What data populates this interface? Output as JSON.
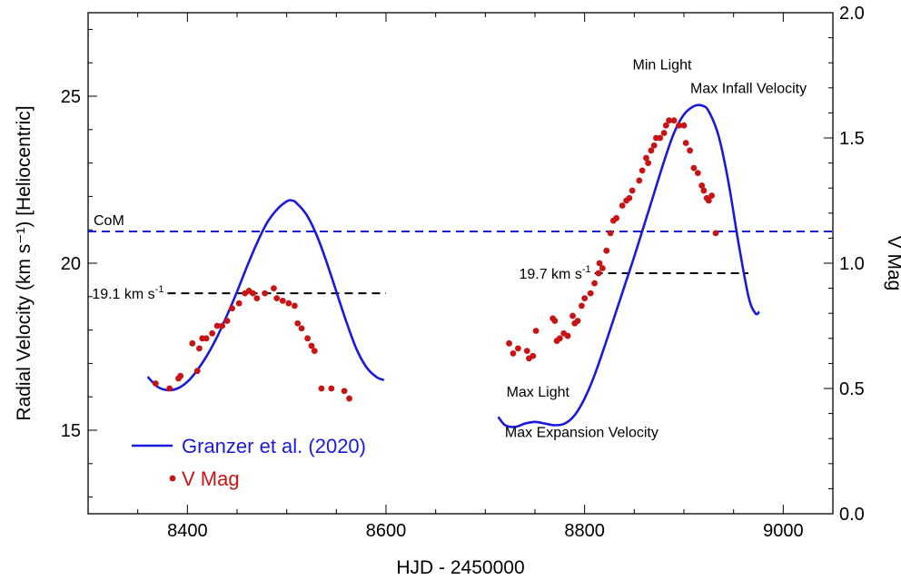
{
  "chart_data": {
    "type": "line",
    "x_axis": {
      "label": "HJD - 2450000",
      "range": [
        8300,
        9050
      ],
      "ticks": [
        8400,
        8600,
        8800,
        9000
      ],
      "tick_labels": [
        "8400",
        "8600",
        "8800",
        "9000"
      ]
    },
    "y_axis_left": {
      "label": "Radial Velocity (km s⁻¹) [Heliocentric]",
      "range": [
        12.5,
        27.5
      ],
      "ticks": [
        15,
        20,
        25
      ],
      "tick_labels": [
        "15",
        "20",
        "25"
      ]
    },
    "y_axis_right": {
      "label": "V Mag",
      "range": [
        0.0,
        2.0
      ],
      "ticks": [
        0.0,
        0.5,
        1.0,
        1.5,
        2.0
      ],
      "tick_labels": [
        "0.0",
        "0.5",
        "1.0",
        "1.5",
        "2.0"
      ]
    },
    "series": [
      {
        "name": "Granzer et al. (2020)",
        "axis": "left",
        "color": "#1a1adc",
        "style": "line",
        "segments": [
          [
            [
              8360,
              16.6
            ],
            [
              8370,
              16.3
            ],
            [
              8380,
              16.2
            ],
            [
              8390,
              16.25
            ],
            [
              8400,
              16.45
            ],
            [
              8410,
              16.8
            ],
            [
              8420,
              17.25
            ],
            [
              8430,
              17.8
            ],
            [
              8440,
              18.45
            ],
            [
              8450,
              19.15
            ],
            [
              8460,
              19.9
            ],
            [
              8470,
              20.6
            ],
            [
              8480,
              21.2
            ],
            [
              8490,
              21.6
            ],
            [
              8500,
              21.85
            ],
            [
              8505,
              21.88
            ],
            [
              8510,
              21.8
            ],
            [
              8520,
              21.45
            ],
            [
              8530,
              20.85
            ],
            [
              8540,
              20.05
            ],
            [
              8550,
              19.15
            ],
            [
              8560,
              18.25
            ],
            [
              8570,
              17.45
            ],
            [
              8580,
              16.9
            ],
            [
              8590,
              16.6
            ],
            [
              8598,
              16.5
            ]
          ],
          [
            [
              8713,
              15.4
            ],
            [
              8720,
              15.15
            ],
            [
              8730,
              15.1
            ],
            [
              8740,
              15.2
            ],
            [
              8750,
              15.25
            ],
            [
              8760,
              15.2
            ],
            [
              8770,
              15.15
            ],
            [
              8780,
              15.2
            ],
            [
              8790,
              15.45
            ],
            [
              8800,
              15.95
            ],
            [
              8810,
              16.65
            ],
            [
              8820,
              17.5
            ],
            [
              8830,
              18.4
            ],
            [
              8840,
              19.3
            ],
            [
              8850,
              20.2
            ],
            [
              8860,
              21.15
            ],
            [
              8870,
              22.1
            ],
            [
              8880,
              23.05
            ],
            [
              8890,
              23.9
            ],
            [
              8900,
              24.45
            ],
            [
              8910,
              24.7
            ],
            [
              8918,
              24.72
            ],
            [
              8925,
              24.55
            ],
            [
              8935,
              23.8
            ],
            [
              8945,
              22.4
            ],
            [
              8955,
              20.6
            ],
            [
              8965,
              19.0
            ],
            [
              8972,
              18.5
            ],
            [
              8976,
              18.55
            ]
          ]
        ]
      },
      {
        "name": "V Mag",
        "axis": "right",
        "color": "#c81414",
        "style": "markers",
        "points": [
          [
            8368,
            0.52
          ],
          [
            8382,
            0.5
          ],
          [
            8391,
            0.54
          ],
          [
            8393,
            0.55
          ],
          [
            8405,
            0.68
          ],
          [
            8410,
            0.57
          ],
          [
            8412,
            0.66
          ],
          [
            8415,
            0.7
          ],
          [
            8419,
            0.7
          ],
          [
            8425,
            0.72
          ],
          [
            8430,
            0.75
          ],
          [
            8435,
            0.75
          ],
          [
            8440,
            0.77
          ],
          [
            8445,
            0.82
          ],
          [
            8452,
            0.84
          ],
          [
            8458,
            0.88
          ],
          [
            8462,
            0.89
          ],
          [
            8466,
            0.88
          ],
          [
            8470,
            0.86
          ],
          [
            8478,
            0.88
          ],
          [
            8487,
            0.9
          ],
          [
            8490,
            0.86
          ],
          [
            8496,
            0.85
          ],
          [
            8502,
            0.84
          ],
          [
            8508,
            0.83
          ],
          [
            8511,
            0.76
          ],
          [
            8515,
            0.74
          ],
          [
            8521,
            0.7
          ],
          [
            8525,
            0.67
          ],
          [
            8528,
            0.65
          ],
          [
            8535,
            0.5
          ],
          [
            8545,
            0.5
          ],
          [
            8558,
            0.49
          ],
          [
            8563,
            0.46
          ],
          [
            8724,
            0.68
          ],
          [
            8728,
            0.64
          ],
          [
            8733,
            0.66
          ],
          [
            8742,
            0.65
          ],
          [
            8744,
            0.62
          ],
          [
            8748,
            0.63
          ],
          [
            8751,
            0.73
          ],
          [
            8768,
            0.78
          ],
          [
            8770,
            0.77
          ],
          [
            8772,
            0.69
          ],
          [
            8775,
            0.7
          ],
          [
            8779,
            0.72
          ],
          [
            8783,
            0.71
          ],
          [
            8788,
            0.79
          ],
          [
            8790,
            0.76
          ],
          [
            8793,
            0.77
          ],
          [
            8797,
            0.83
          ],
          [
            8800,
            0.86
          ],
          [
            8806,
            0.88
          ],
          [
            8810,
            0.92
          ],
          [
            8814,
            0.96
          ],
          [
            8815,
            1.0
          ],
          [
            8818,
            0.98
          ],
          [
            8822,
            1.05
          ],
          [
            8826,
            1.12
          ],
          [
            8829,
            1.17
          ],
          [
            8832,
            1.18
          ],
          [
            8838,
            1.23
          ],
          [
            8842,
            1.25
          ],
          [
            8845,
            1.26
          ],
          [
            8848,
            1.29
          ],
          [
            8855,
            1.33
          ],
          [
            8858,
            1.37
          ],
          [
            8862,
            1.42
          ],
          [
            8864,
            1.4
          ],
          [
            8867,
            1.45
          ],
          [
            8870,
            1.47
          ],
          [
            8872,
            1.5
          ],
          [
            8876,
            1.5
          ],
          [
            8880,
            1.52
          ],
          [
            8882,
            1.55
          ],
          [
            8885,
            1.57
          ],
          [
            8890,
            1.57
          ],
          [
            8895,
            1.55
          ],
          [
            8900,
            1.55
          ],
          [
            8902,
            1.48
          ],
          [
            8906,
            1.45
          ],
          [
            8910,
            1.38
          ],
          [
            8914,
            1.36
          ],
          [
            8918,
            1.31
          ],
          [
            8920,
            1.29
          ],
          [
            8923,
            1.26
          ],
          [
            8925,
            1.25
          ],
          [
            8928,
            1.27
          ],
          [
            8932,
            1.12
          ]
        ]
      }
    ],
    "reference_lines": [
      {
        "name": "CoM",
        "label": "CoM",
        "axis": "left",
        "y": 20.95,
        "x_range": [
          8300,
          9050
        ],
        "color": "#1a1adc",
        "style": "dashed"
      },
      {
        "name": "19.1",
        "label": "19.1 km s",
        "superscript": "-1",
        "axis": "left",
        "y": 19.1,
        "x_range": [
          8380,
          8600
        ],
        "color": "#000000",
        "style": "dashed"
      },
      {
        "name": "19.7",
        "label": "19.7 km s",
        "superscript": "-1",
        "axis": "left",
        "y": 19.7,
        "x_range": [
          8810,
          8965
        ],
        "color": "#000000",
        "style": "dashed"
      }
    ],
    "annotations": [
      {
        "text": "Min Light",
        "x": 8878,
        "y": 25.8,
        "anchor": "middle"
      },
      {
        "text": "Max Infall Velocity",
        "x": 8965,
        "y": 25.1,
        "anchor": "middle"
      },
      {
        "text": "Max Light",
        "x": 8753,
        "y": 16.0,
        "anchor": "middle"
      },
      {
        "text": "Max Expansion Velocity",
        "x": 8797,
        "y": 14.8,
        "anchor": "middle"
      }
    ],
    "legend": {
      "placement": "lower-left",
      "entries": [
        {
          "label": "Granzer et al. (2020)",
          "color": "#1a1adc",
          "symbol": "line"
        },
        {
          "label": "V Mag",
          "color": "#c81414",
          "symbol": "dot"
        }
      ]
    },
    "grid": false
  }
}
